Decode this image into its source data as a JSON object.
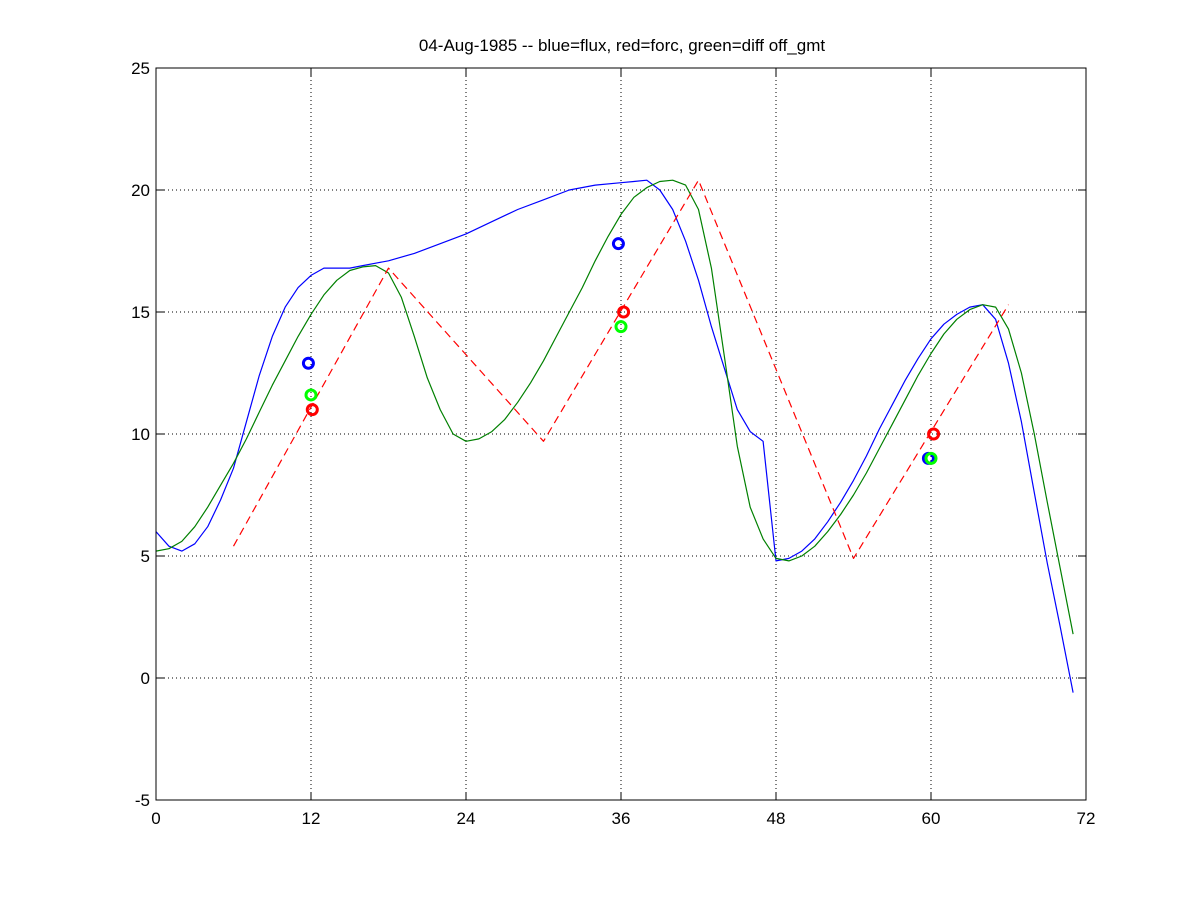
{
  "chart_data": {
    "type": "line",
    "title": "04-Aug-1985 -- blue=flux, red=forc, green=diff off_gmt",
    "xlabel": "",
    "ylabel": "",
    "xlim": [
      0,
      72
    ],
    "ylim": [
      -5,
      25
    ],
    "xticks": [
      0,
      12,
      24,
      36,
      48,
      60,
      72
    ],
    "yticks": [
      -5,
      0,
      5,
      10,
      15,
      20,
      25
    ],
    "grid": "dotted",
    "colors": {
      "flux": "#0000ff",
      "forc": "#ff0000",
      "diff": "#008000",
      "diff_marker": "#00ff00"
    },
    "series": [
      {
        "color": "blue",
        "style": "solid",
        "x": [
          0,
          1,
          2,
          3,
          4,
          5,
          6,
          7,
          8,
          9,
          10,
          11,
          12,
          13,
          14,
          15,
          16,
          17,
          18,
          20,
          22,
          24,
          26,
          28,
          30,
          32,
          34,
          36,
          37,
          38,
          39,
          40,
          41,
          42,
          43,
          44,
          45,
          46,
          47,
          48,
          49,
          50,
          51,
          52,
          53,
          54,
          55,
          56,
          57,
          58,
          59,
          60,
          61,
          62,
          63,
          64,
          65,
          66,
          67,
          68,
          69,
          70,
          71
        ],
        "y": [
          6.0,
          5.4,
          5.2,
          5.5,
          6.2,
          7.3,
          8.6,
          10.5,
          12.4,
          14.0,
          15.2,
          16.0,
          16.5,
          16.8,
          16.8,
          16.8,
          16.9,
          17.0,
          17.1,
          17.4,
          17.8,
          18.2,
          18.7,
          19.2,
          19.6,
          20.0,
          20.2,
          20.3,
          20.35,
          20.4,
          20.0,
          19.2,
          17.9,
          16.3,
          14.4,
          12.7,
          11.0,
          10.1,
          9.7,
          4.8,
          4.9,
          5.2,
          5.7,
          6.4,
          7.2,
          8.1,
          9.1,
          10.2,
          11.2,
          12.2,
          13.1,
          13.9,
          14.5,
          14.9,
          15.2,
          15.3,
          14.7,
          12.9,
          10.5,
          7.6,
          4.7,
          2.1,
          -0.6
        ]
      },
      {
        "color": "green",
        "style": "solid",
        "x": [
          0,
          1,
          2,
          3,
          4,
          5,
          6,
          7,
          8,
          9,
          10,
          11,
          12,
          13,
          14,
          15,
          16,
          17,
          18,
          19,
          20,
          21,
          22,
          23,
          24,
          25,
          26,
          27,
          28,
          29,
          30,
          31,
          32,
          33,
          34,
          35,
          36,
          37,
          38,
          39,
          40,
          41,
          42,
          43,
          44,
          45,
          46,
          47,
          48,
          49,
          50,
          51,
          52,
          53,
          54,
          55,
          56,
          57,
          58,
          59,
          60,
          61,
          62,
          63,
          64,
          65,
          66,
          67,
          68,
          69,
          70,
          71
        ],
        "y": [
          5.2,
          5.3,
          5.6,
          6.2,
          7.0,
          7.9,
          8.8,
          9.8,
          10.9,
          12.0,
          13.0,
          14.0,
          14.9,
          15.7,
          16.3,
          16.7,
          16.85,
          16.9,
          16.6,
          15.6,
          14.0,
          12.3,
          11.0,
          10.0,
          9.7,
          9.8,
          10.1,
          10.6,
          11.3,
          12.1,
          13.0,
          14.0,
          15.0,
          16.0,
          17.1,
          18.1,
          19.0,
          19.7,
          20.1,
          20.35,
          20.4,
          20.2,
          19.2,
          16.8,
          13.2,
          9.5,
          7.0,
          5.7,
          4.9,
          4.8,
          5.0,
          5.4,
          6.0,
          6.7,
          7.5,
          8.4,
          9.4,
          10.4,
          11.4,
          12.4,
          13.3,
          14.1,
          14.7,
          15.1,
          15.3,
          15.2,
          14.3,
          12.5,
          10.0,
          7.2,
          4.5,
          1.8
        ]
      },
      {
        "color": "red",
        "style": "dashed",
        "x": [
          6,
          18,
          30,
          42,
          54,
          66
        ],
        "y": [
          5.4,
          16.8,
          9.7,
          20.4,
          4.9,
          15.3
        ]
      }
    ],
    "markers": [
      {
        "color": "blue",
        "x": [
          11.8,
          35.8,
          59.8
        ],
        "y": [
          12.9,
          17.8,
          9.0
        ]
      },
      {
        "color": "red",
        "x": [
          12.1,
          36.2,
          60.2
        ],
        "y": [
          11.0,
          15.0,
          10.0
        ]
      },
      {
        "color": "lime",
        "x": [
          12.0,
          36.0,
          60.0
        ],
        "y": [
          11.6,
          14.4,
          9.0
        ]
      }
    ]
  }
}
